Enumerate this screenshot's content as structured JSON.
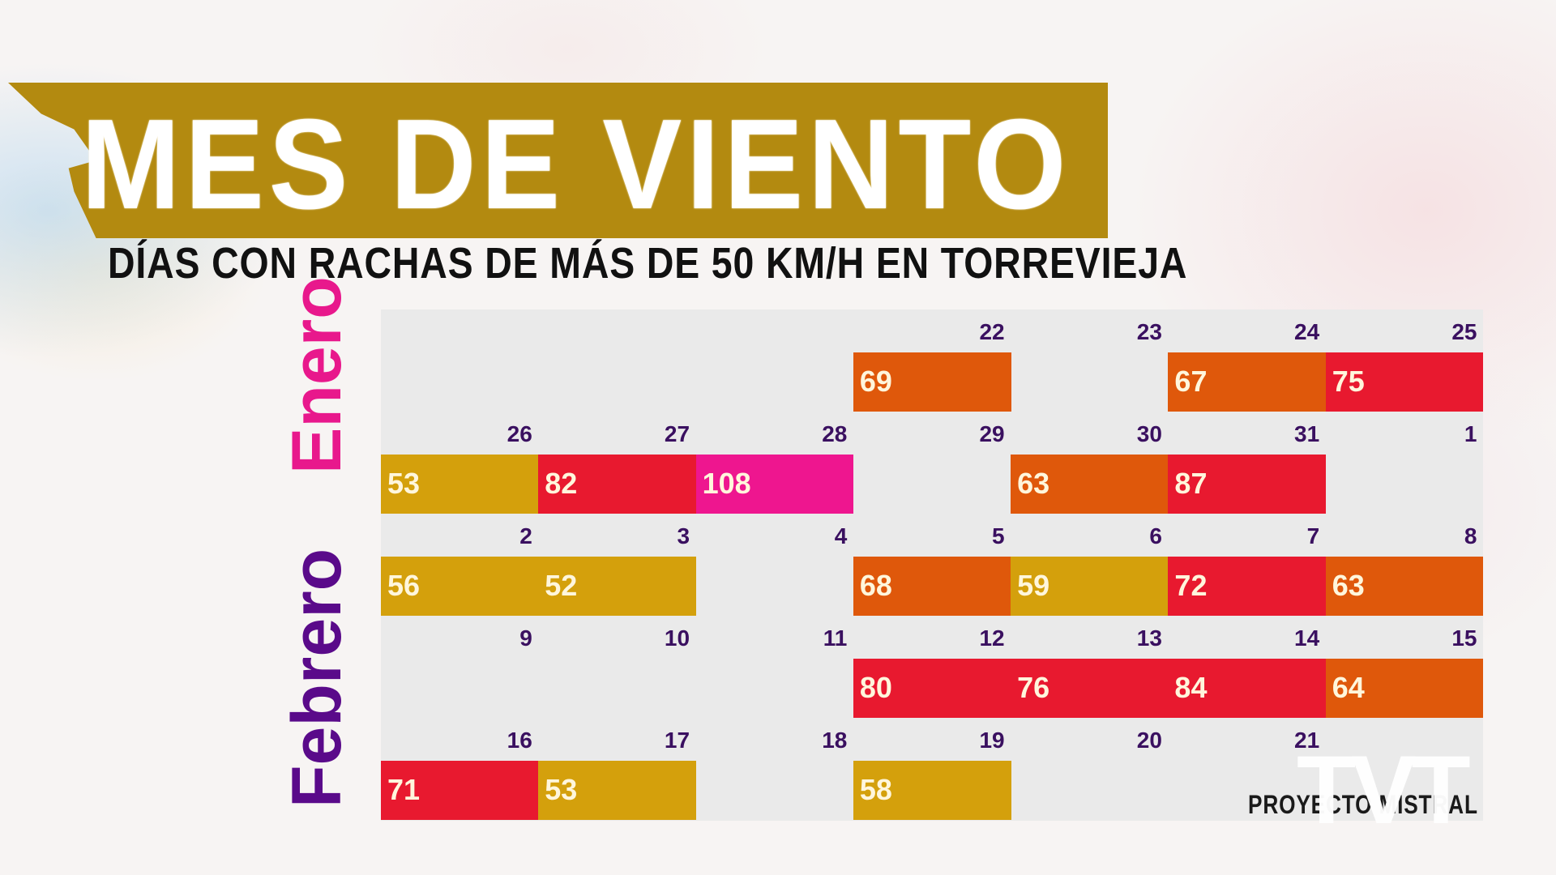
{
  "header": {
    "title": "MES DE VIENTO",
    "subtitle": "DÍAS CON RACHAS DE MÁS DE 50 KM/H EN TORREVIEJA"
  },
  "months": {
    "enero": "Enero",
    "febrero": "Febrero"
  },
  "footer": {
    "credit": "PROYECTO MISTRAL",
    "logo": "TVT"
  },
  "colors": {
    "banner": "#b38a10",
    "gold": "#d4a00c",
    "orange": "#df580b",
    "red": "#e8192f",
    "magenta": "#ee168f",
    "grid_bg": "#eaeaea",
    "date_text": "#3a1060"
  },
  "calendar": {
    "rows": [
      [
        {
          "date": "",
          "value": ""
        },
        {
          "date": "",
          "value": ""
        },
        {
          "date": "",
          "value": ""
        },
        {
          "date": "22",
          "value": "69",
          "color": "orange"
        },
        {
          "date": "23",
          "value": ""
        },
        {
          "date": "24",
          "value": "67",
          "color": "orange"
        },
        {
          "date": "25",
          "value": "75",
          "color": "red"
        }
      ],
      [
        {
          "date": "26",
          "value": "53",
          "color": "gold"
        },
        {
          "date": "27",
          "value": "82",
          "color": "red"
        },
        {
          "date": "28",
          "value": "108",
          "color": "magenta"
        },
        {
          "date": "29",
          "value": ""
        },
        {
          "date": "30",
          "value": "63",
          "color": "orange"
        },
        {
          "date": "31",
          "value": "87",
          "color": "red"
        },
        {
          "date": "1",
          "value": ""
        }
      ],
      [
        {
          "date": "2",
          "value": "56",
          "color": "gold"
        },
        {
          "date": "3",
          "value": "52",
          "color": "gold"
        },
        {
          "date": "4",
          "value": ""
        },
        {
          "date": "5",
          "value": "68",
          "color": "orange"
        },
        {
          "date": "6",
          "value": "59",
          "color": "gold"
        },
        {
          "date": "7",
          "value": "72",
          "color": "red"
        },
        {
          "date": "8",
          "value": "63",
          "color": "orange"
        }
      ],
      [
        {
          "date": "9",
          "value": ""
        },
        {
          "date": "10",
          "value": ""
        },
        {
          "date": "11",
          "value": ""
        },
        {
          "date": "12",
          "value": "80",
          "color": "red"
        },
        {
          "date": "13",
          "value": "76",
          "color": "red"
        },
        {
          "date": "14",
          "value": "84",
          "color": "red"
        },
        {
          "date": "15",
          "value": "64",
          "color": "orange"
        }
      ],
      [
        {
          "date": "16",
          "value": "71",
          "color": "red"
        },
        {
          "date": "17",
          "value": "53",
          "color": "gold"
        },
        {
          "date": "18",
          "value": ""
        },
        {
          "date": "19",
          "value": "58",
          "color": "gold"
        },
        {
          "date": "20",
          "value": ""
        },
        {
          "date": "21",
          "value": ""
        },
        {
          "date": "",
          "value": ""
        }
      ]
    ]
  },
  "chart_data": {
    "type": "heatmap",
    "title": "MES DE VIENTO",
    "subtitle": "DÍAS CON RACHAS DE MÁS DE 50 KM/H EN TORREVIEJA",
    "xlabel": "",
    "ylabel": "Enero / Febrero",
    "unit": "km/h (racha máxima)",
    "legend": null,
    "grid": false,
    "layout": "calendar, 7 columns x 5 rows, Jan 22 - Feb 21",
    "series": [
      {
        "name": "Enero",
        "x": [
          "22",
          "24",
          "25",
          "26",
          "27",
          "28",
          "30",
          "31"
        ],
        "values": [
          69,
          67,
          75,
          53,
          82,
          108,
          63,
          87
        ]
      },
      {
        "name": "Febrero",
        "x": [
          "2",
          "3",
          "5",
          "6",
          "7",
          "8",
          "12",
          "13",
          "14",
          "15",
          "16",
          "17",
          "19"
        ],
        "values": [
          56,
          52,
          68,
          59,
          72,
          63,
          80,
          76,
          84,
          64,
          71,
          53,
          58
        ]
      }
    ],
    "color_scale": {
      "gold": "50-59",
      "orange": "60-69",
      "red": "70-99",
      "magenta": ">=100"
    },
    "empty_days": [
      "Enero 23",
      "Enero 29",
      "Febrero 1",
      "Febrero 4",
      "Febrero 9",
      "Febrero 10",
      "Febrero 11",
      "Febrero 18",
      "Febrero 20",
      "Febrero 21"
    ]
  }
}
